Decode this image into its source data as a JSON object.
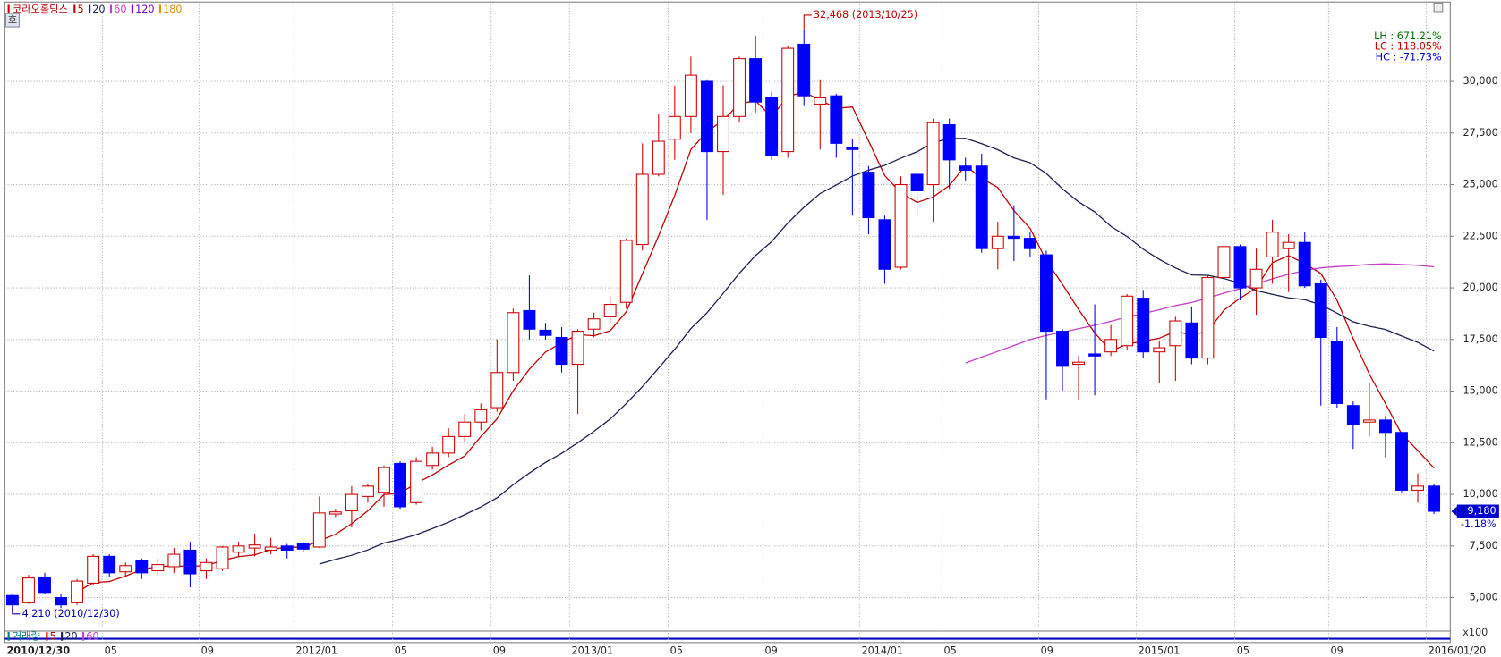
{
  "chart_data": {
    "type": "candlestick",
    "title": "코라오홀딩스",
    "button_label": "호",
    "up_color": "#d00000",
    "down_color": "#0000ff",
    "open": [
      5100,
      4750,
      6000,
      5000,
      4750,
      5700,
      7000,
      6250,
      6800,
      6300,
      6500,
      7300,
      6300,
      6400,
      7200,
      7400,
      7300,
      7500,
      7600,
      7450,
      9050,
      9200,
      9900,
      10100,
      11500,
      9600,
      11400,
      12000,
      12800,
      13500,
      14200,
      15900,
      18900,
      17950,
      17600,
      16300,
      18000,
      18600,
      19300,
      22100,
      25500,
      27200,
      28300,
      30000,
      26600,
      28300,
      31100,
      29200,
      26600,
      31800,
      28900,
      29300,
      26800,
      25600,
      23300,
      21000,
      25500,
      25000,
      27900,
      25900,
      25900,
      21900,
      22500,
      22400,
      21600,
      17900,
      16300,
      16800,
      16900,
      17200,
      19500,
      16900,
      17200,
      18300,
      16600,
      20500,
      22000,
      20000,
      21500,
      21900,
      22200,
      20200,
      17400,
      14300,
      13500,
      13600,
      13000,
      10200,
      10400
    ],
    "high": [
      5150,
      6100,
      6200,
      5200,
      5900,
      7100,
      7100,
      6700,
      6900,
      6900,
      7400,
      7700,
      6900,
      7500,
      7700,
      8100,
      7900,
      7600,
      7700,
      9900,
      9300,
      10400,
      10500,
      11400,
      11600,
      11800,
      12300,
      13200,
      13900,
      14400,
      17500,
      19000,
      20600,
      18300,
      18100,
      18000,
      18800,
      19600,
      22400,
      27000,
      28400,
      29800,
      31200,
      30100,
      29800,
      31200,
      32200,
      29500,
      31700,
      32468,
      30100,
      29400,
      27200,
      25900,
      23500,
      25400,
      25600,
      28200,
      28200,
      26300,
      26500,
      23200,
      24000,
      22700,
      21800,
      18000,
      16700,
      19200,
      18200,
      19700,
      19900,
      17400,
      18600,
      19100,
      20600,
      22100,
      22100,
      21900,
      23300,
      22600,
      22700,
      20400,
      18100,
      14500,
      15400,
      13800,
      13000,
      11000,
      10500
    ],
    "low": [
      4210,
      4700,
      5200,
      4500,
      4650,
      5600,
      6000,
      6000,
      5900,
      6100,
      6200,
      5500,
      5900,
      6300,
      7000,
      7000,
      7100,
      6900,
      7200,
      7400,
      8900,
      8400,
      9600,
      9400,
      9300,
      9500,
      11200,
      11800,
      12500,
      13100,
      14000,
      15500,
      17500,
      17500,
      15900,
      13900,
      17600,
      18300,
      19000,
      21800,
      25400,
      26200,
      27500,
      23300,
      24500,
      28000,
      28500,
      26200,
      26300,
      28800,
      26700,
      26300,
      23500,
      22600,
      20200,
      20900,
      23500,
      23200,
      24800,
      25200,
      21700,
      20900,
      21300,
      21500,
      14600,
      15000,
      14600,
      14800,
      16700,
      17000,
      16600,
      15400,
      15500,
      16300,
      16300,
      19700,
      19400,
      18700,
      20200,
      19800,
      20000,
      14300,
      14200,
      12200,
      12800,
      11800,
      10100,
      9600,
      9050
    ],
    "close": [
      4650,
      5950,
      5250,
      4650,
      5800,
      7000,
      6200,
      6550,
      6200,
      6600,
      7100,
      6150,
      6700,
      7450,
      7500,
      7550,
      7450,
      7300,
      7350,
      9100,
      9150,
      10000,
      10400,
      11300,
      9400,
      11600,
      12000,
      12800,
      13500,
      14100,
      15900,
      18800,
      18000,
      17700,
      16300,
      17900,
      18500,
      19200,
      22300,
      25500,
      27100,
      28300,
      30300,
      26600,
      28300,
      31100,
      29000,
      26400,
      31600,
      29300,
      29200,
      27000,
      26700,
      23400,
      20900,
      25000,
      24700,
      28000,
      26200,
      25700,
      21900,
      22500,
      22400,
      21900,
      17900,
      16200,
      16400,
      16700,
      17500,
      19600,
      16900,
      17100,
      18400,
      16600,
      20500,
      22000,
      20000,
      20900,
      22700,
      22200,
      20100,
      17600,
      14400,
      13400,
      13600,
      13000,
      10200,
      10400,
      9180
    ],
    "indicators": [
      {
        "name": "5",
        "period": 5,
        "color": "#c00000"
      },
      {
        "name": "20",
        "period": 20,
        "color": "#1a1f4d"
      },
      {
        "name": "60",
        "period": 60,
        "color": "#c83cc8"
      },
      {
        "name": "120",
        "period": 120,
        "color": "#7a00d0"
      },
      {
        "name": "180",
        "period": 180,
        "color": "#e09000"
      }
    ],
    "annotations": {
      "high": {
        "label": "32,468 (2013/10/25)",
        "index": 49,
        "value": 32468
      },
      "low": {
        "label": "4,210 (2010/12/30)",
        "index": 0,
        "value": 4210
      }
    },
    "stats": [
      {
        "label": "LH : 671.21%",
        "color": "#007000"
      },
      {
        "label": "LC : 118.05%",
        "color": "#c00000"
      },
      {
        "label": "HC : -71.73%",
        "color": "#0000c0"
      }
    ],
    "last": {
      "price_label": "9,180",
      "change_label": "-1.18%",
      "value": 9180
    },
    "volume_legend": {
      "title": "거래량",
      "items": [
        "5",
        "20",
        "60"
      ]
    },
    "volume_unit": "x100",
    "ylim": [
      3380,
      33843
    ],
    "yticks": [
      {
        "value": 5000,
        "label": "5,000"
      },
      {
        "value": 7500,
        "label": "7,500"
      },
      {
        "value": 10000,
        "label": "10,000"
      },
      {
        "value": 12500,
        "label": "12,500"
      },
      {
        "value": 15000,
        "label": "15,000"
      },
      {
        "value": 17500,
        "label": "17,500"
      },
      {
        "value": 20000,
        "label": "20,000"
      },
      {
        "value": 22500,
        "label": "22,500"
      },
      {
        "value": 25000,
        "label": "25,000"
      },
      {
        "value": 27500,
        "label": "27,500"
      },
      {
        "value": 30000,
        "label": "30,000"
      }
    ],
    "xlim": [
      -0.474,
      89.01
    ],
    "xticks": [
      {
        "value": -0.474,
        "label": "2010/12/30"
      },
      {
        "value": 5.57,
        "label": "05"
      },
      {
        "value": 11.56,
        "label": "09"
      },
      {
        "value": 17.42,
        "label": "2012/01"
      },
      {
        "value": 23.53,
        "label": "05"
      },
      {
        "value": 29.63,
        "label": "09"
      },
      {
        "value": 34.49,
        "label": "2013/01"
      },
      {
        "value": 40.59,
        "label": "05"
      },
      {
        "value": 46.46,
        "label": "09"
      },
      {
        "value": 52.44,
        "label": "2014/01"
      },
      {
        "value": 57.54,
        "label": "05"
      },
      {
        "value": 63.53,
        "label": "09"
      },
      {
        "value": 69.57,
        "label": "2015/01"
      },
      {
        "value": 75.67,
        "label": "05"
      },
      {
        "value": 81.48,
        "label": "09"
      },
      {
        "value": 87.52,
        "label": "2016/01/20"
      }
    ],
    "grid": true
  }
}
